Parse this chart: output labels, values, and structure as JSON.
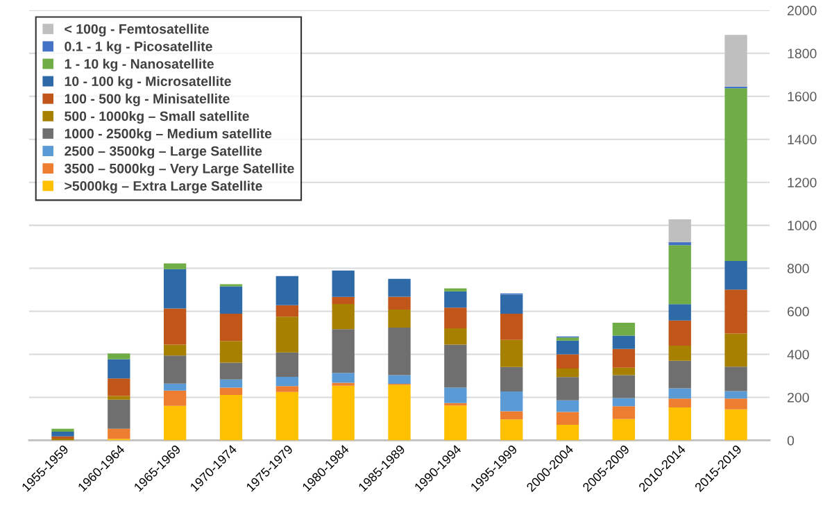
{
  "chart_data": {
    "type": "bar",
    "stacked": true,
    "categories": [
      "1955-1959",
      "1960-1964",
      "1965-1969",
      "1970-1974",
      "1975-1979",
      "1980-1984",
      "1985-1989",
      "1990-1994",
      "1995-1999",
      "2000-2004",
      "2005-2009",
      "2010-2014",
      "2015-2019"
    ],
    "series": [
      {
        "name": ">5000kg – Extra Large Satellite",
        "color": "#ffc000",
        "values": [
          0,
          7,
          160,
          211,
          225,
          254,
          258,
          162,
          97,
          72,
          99,
          153,
          144
        ]
      },
      {
        "name": "3500 – 5000kg – Very Large Satellite",
        "color": "#ed7d31",
        "values": [
          0,
          47,
          71,
          34,
          27,
          14,
          5,
          11,
          38,
          60,
          60,
          41,
          50
        ]
      },
      {
        "name": "2500 – 3500kg – Large Satellite",
        "color": "#5b9bd5",
        "values": [
          0,
          0,
          33,
          38,
          43,
          46,
          40,
          72,
          92,
          54,
          38,
          48,
          35
        ]
      },
      {
        "name": "1000 - 2500kg – Medium satellite",
        "color": "#6f6f6f",
        "values": [
          0,
          135,
          130,
          78,
          114,
          203,
          221,
          200,
          114,
          108,
          106,
          128,
          114
        ]
      },
      {
        "name": "500 - 1000kg – Small satellite",
        "color": "#a88000",
        "values": [
          8,
          17,
          51,
          101,
          166,
          117,
          84,
          76,
          126,
          40,
          35,
          70,
          154
        ]
      },
      {
        "name": "100 - 500 kg - Minisatellite",
        "color": "#c0561a",
        "values": [
          10,
          82,
          168,
          127,
          53,
          33,
          60,
          96,
          122,
          66,
          87,
          117,
          204
        ]
      },
      {
        "name": "10 - 100 kg - Microsatellite",
        "color": "#2e6aa8",
        "values": [
          22,
          89,
          183,
          127,
          136,
          123,
          83,
          76,
          89,
          64,
          62,
          76,
          133
        ]
      },
      {
        "name": "1 - 10 kg - Nanosatellite",
        "color": "#70ad47",
        "values": [
          14,
          27,
          27,
          10,
          0,
          0,
          0,
          14,
          0,
          14,
          60,
          275,
          803
        ]
      },
      {
        "name": "0.1 - 1 kg - Picosatellite",
        "color": "#4472c4",
        "values": [
          0,
          0,
          0,
          0,
          0,
          0,
          0,
          0,
          5,
          5,
          0,
          14,
          8
        ]
      },
      {
        "name": "< 100g - Femtosatellite",
        "color": "#bfbfbf",
        "values": [
          0,
          0,
          0,
          0,
          0,
          0,
          0,
          0,
          0,
          0,
          0,
          106,
          241
        ]
      }
    ],
    "ylim": [
      0,
      2000
    ],
    "yticks": [
      0,
      200,
      400,
      600,
      800,
      1000,
      1200,
      1400,
      1600,
      1800,
      2000
    ],
    "grid": "y",
    "legend": "top left"
  }
}
